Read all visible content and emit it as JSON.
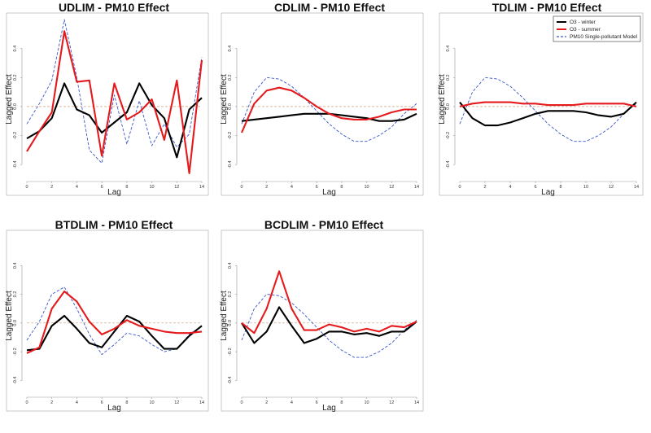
{
  "legend": {
    "entries": [
      {
        "label": "O3 - winter",
        "color": "#000000",
        "dash": false
      },
      {
        "label": "O3 - summer",
        "color": "#e41a1c",
        "dash": false
      },
      {
        "label": "PM10 Single-pollutant Model",
        "color": "#3a56c8",
        "dash": true
      }
    ]
  },
  "chart_data": [
    {
      "type": "line",
      "title": "UDLIM - PM10 Effect",
      "xlabel": "Lag",
      "ylabel": "Lagged Effect",
      "xlim": [
        0,
        14
      ],
      "ylim": [
        -0.5,
        0.6
      ],
      "xticks": [
        "0",
        "2",
        "4",
        "6",
        "8",
        "10",
        "12",
        "14"
      ],
      "yticks": [
        "-0.4",
        "-0.2",
        "0.0",
        "0.2",
        "0.4"
      ],
      "reference_line": 0,
      "x": [
        0,
        1,
        2,
        3,
        4,
        5,
        6,
        7,
        8,
        9,
        10,
        11,
        12,
        13,
        14
      ],
      "series": [
        {
          "name": "O3 - winter",
          "values": [
            -0.22,
            -0.17,
            -0.08,
            0.16,
            -0.02,
            -0.06,
            -0.18,
            -0.11,
            -0.04,
            0.16,
            0.01,
            -0.08,
            -0.35,
            -0.02,
            0.06
          ]
        },
        {
          "name": "O3 - summer",
          "values": [
            -0.31,
            -0.17,
            -0.04,
            0.52,
            0.17,
            0.18,
            -0.34,
            0.16,
            -0.09,
            -0.04,
            0.05,
            -0.23,
            0.18,
            -0.46,
            0.32
          ]
        },
        {
          "name": "PM10 Single-pollutant Model",
          "values": [
            -0.12,
            0.02,
            0.18,
            0.6,
            0.2,
            -0.3,
            -0.39,
            0.08,
            -0.26,
            0.04,
            -0.27,
            -0.12,
            -0.28,
            -0.19,
            0.34
          ]
        }
      ]
    },
    {
      "type": "line",
      "title": "CDLIM - PM10 Effect",
      "xlabel": "Lag",
      "ylabel": "Lagged Effect",
      "xlim": [
        0,
        14
      ],
      "ylim": [
        -0.5,
        0.6
      ],
      "xticks": [
        "0",
        "2",
        "4",
        "6",
        "8",
        "10",
        "12",
        "14"
      ],
      "yticks": [
        "-0.4",
        "-0.2",
        "0.0",
        "0.2",
        "0.4"
      ],
      "reference_line": 0,
      "x": [
        0,
        1,
        2,
        3,
        4,
        5,
        6,
        7,
        8,
        9,
        10,
        11,
        12,
        13,
        14
      ],
      "series": [
        {
          "name": "O3 - winter",
          "values": [
            -0.1,
            -0.09,
            -0.08,
            -0.07,
            -0.06,
            -0.05,
            -0.05,
            -0.05,
            -0.06,
            -0.07,
            -0.08,
            -0.1,
            -0.1,
            -0.09,
            -0.05
          ]
        },
        {
          "name": "O3 - summer",
          "values": [
            -0.18,
            0.02,
            0.11,
            0.13,
            0.11,
            0.06,
            0.0,
            -0.05,
            -0.08,
            -0.09,
            -0.09,
            -0.07,
            -0.04,
            -0.02,
            -0.02
          ]
        },
        {
          "name": "PM10 Single-pollutant Model",
          "values": [
            -0.12,
            0.1,
            0.2,
            0.19,
            0.14,
            0.06,
            -0.03,
            -0.12,
            -0.19,
            -0.24,
            -0.24,
            -0.2,
            -0.14,
            -0.05,
            0.02
          ]
        }
      ]
    },
    {
      "type": "line",
      "title": "TDLIM - PM10 Effect",
      "xlabel": "Lag",
      "ylabel": "Lagged Effect",
      "xlim": [
        0,
        14
      ],
      "ylim": [
        -0.5,
        0.6
      ],
      "xticks": [
        "0",
        "2",
        "4",
        "6",
        "8",
        "10",
        "12",
        "14"
      ],
      "yticks": [
        "-0.4",
        "-0.2",
        "0.0",
        "0.2",
        "0.4"
      ],
      "reference_line": 0,
      "x": [
        0,
        1,
        2,
        3,
        4,
        5,
        6,
        7,
        8,
        9,
        10,
        11,
        12,
        13,
        14
      ],
      "series": [
        {
          "name": "O3 - winter",
          "values": [
            0.03,
            -0.08,
            -0.13,
            -0.13,
            -0.11,
            -0.08,
            -0.05,
            -0.03,
            -0.03,
            -0.03,
            -0.04,
            -0.06,
            -0.07,
            -0.05,
            0.03
          ]
        },
        {
          "name": "O3 - summer",
          "values": [
            0.0,
            0.02,
            0.03,
            0.03,
            0.03,
            0.02,
            0.02,
            0.01,
            0.01,
            0.01,
            0.02,
            0.02,
            0.02,
            0.02,
            0.0
          ]
        },
        {
          "name": "PM10 Single-pollutant Model",
          "values": [
            -0.12,
            0.1,
            0.2,
            0.19,
            0.14,
            0.06,
            -0.03,
            -0.12,
            -0.19,
            -0.24,
            -0.24,
            -0.2,
            -0.14,
            -0.05,
            0.02
          ]
        }
      ]
    },
    {
      "type": "line",
      "title": "BTDLIM - PM10 Effect",
      "xlabel": "Lag",
      "ylabel": "Lagged Effect",
      "xlim": [
        0,
        14
      ],
      "ylim": [
        -0.5,
        0.6
      ],
      "xticks": [
        "0",
        "2",
        "4",
        "6",
        "8",
        "10",
        "12",
        "14"
      ],
      "yticks": [
        "-0.4",
        "-0.2",
        "0.0",
        "0.2",
        "0.4"
      ],
      "reference_line": 0,
      "x": [
        0,
        1,
        2,
        3,
        4,
        5,
        6,
        7,
        8,
        9,
        10,
        11,
        12,
        13,
        14
      ],
      "series": [
        {
          "name": "O3 - winter",
          "values": [
            -0.19,
            -0.18,
            -0.02,
            0.05,
            -0.04,
            -0.14,
            -0.17,
            -0.06,
            0.05,
            0.01,
            -0.09,
            -0.18,
            -0.18,
            -0.09,
            -0.02
          ]
        },
        {
          "name": "O3 - summer",
          "values": [
            -0.21,
            -0.17,
            0.1,
            0.22,
            0.15,
            0.01,
            -0.08,
            -0.04,
            0.02,
            -0.02,
            -0.04,
            -0.06,
            -0.07,
            -0.07,
            -0.06
          ]
        },
        {
          "name": "PM10 Single-pollutant Model",
          "values": [
            -0.12,
            0.01,
            0.2,
            0.25,
            0.1,
            -0.08,
            -0.22,
            -0.15,
            -0.07,
            -0.09,
            -0.15,
            -0.2,
            -0.18,
            -0.08,
            -0.02
          ]
        }
      ]
    },
    {
      "type": "line",
      "title": "BCDLIM - PM10 Effect",
      "xlabel": "Lag",
      "ylabel": "Lagged Effect",
      "xlim": [
        0,
        14
      ],
      "ylim": [
        -0.5,
        0.6
      ],
      "xticks": [
        "0",
        "2",
        "4",
        "6",
        "8",
        "10",
        "12",
        "14"
      ],
      "yticks": [
        "-0.4",
        "-0.2",
        "0.0",
        "0.2",
        "0.4"
      ],
      "reference_line": 0,
      "x": [
        0,
        1,
        2,
        3,
        4,
        5,
        6,
        7,
        8,
        9,
        10,
        11,
        12,
        13,
        14
      ],
      "series": [
        {
          "name": "O3 - winter",
          "values": [
            0.0,
            -0.14,
            -0.06,
            0.11,
            -0.02,
            -0.14,
            -0.11,
            -0.06,
            -0.06,
            -0.08,
            -0.07,
            -0.09,
            -0.06,
            -0.06,
            0.01
          ]
        },
        {
          "name": "O3 - summer",
          "values": [
            0.0,
            -0.07,
            0.1,
            0.36,
            0.1,
            -0.05,
            -0.05,
            -0.01,
            -0.03,
            -0.06,
            -0.04,
            -0.06,
            -0.02,
            -0.03,
            0.01
          ]
        },
        {
          "name": "PM10 Single-pollutant Model",
          "values": [
            -0.12,
            0.1,
            0.2,
            0.19,
            0.14,
            0.06,
            -0.03,
            -0.12,
            -0.19,
            -0.24,
            -0.24,
            -0.2,
            -0.14,
            -0.05,
            0.02
          ]
        }
      ]
    }
  ]
}
